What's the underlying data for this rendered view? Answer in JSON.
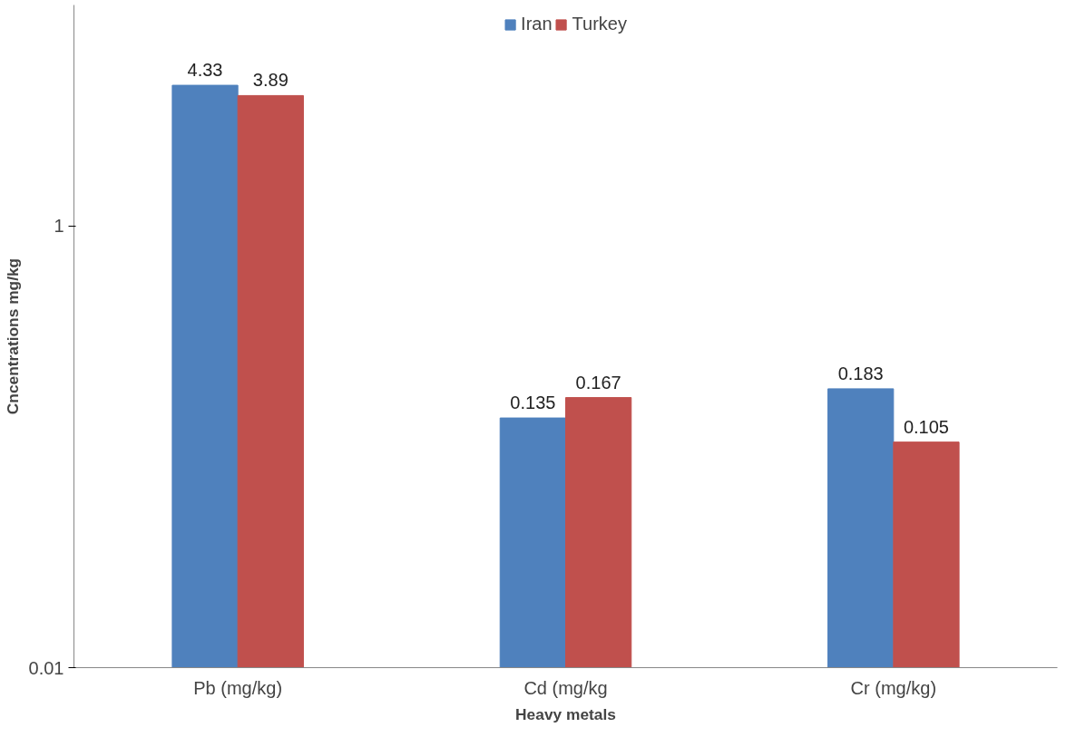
{
  "chart_data": {
    "type": "bar",
    "xlabel": "Heavy metals",
    "ylabel": "Cncentrations mg/kg",
    "categories": [
      "Pb (mg/kg)",
      "Cd (mg/kg",
      "Cr (mg/kg)"
    ],
    "series": [
      {
        "name": "Iran",
        "color": "#4f81bd",
        "values": [
          4.33,
          0.135,
          0.183
        ]
      },
      {
        "name": "Turkey",
        "color": "#c0504d",
        "values": [
          3.89,
          0.167,
          0.105
        ]
      }
    ],
    "log": "y",
    "ylim": [
      0.01,
      10
    ],
    "yticks": [
      0.01,
      1
    ],
    "grid": false,
    "legend": "top",
    "data_labels": true
  }
}
